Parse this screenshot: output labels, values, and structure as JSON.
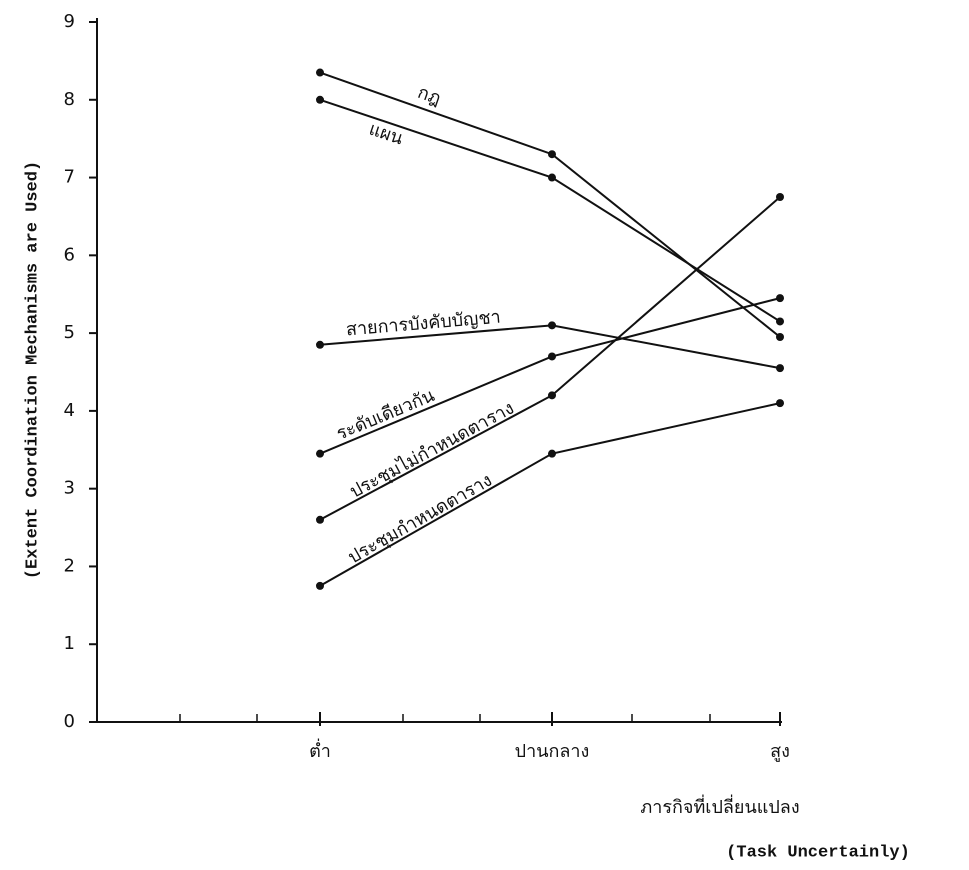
{
  "chart_data": {
    "type": "line",
    "y_label": "(Extent Coordination Mechanisms are Used)",
    "x_label": "ภารกิจที่เปลี่ยนแปลง",
    "x_label_en": "(Task Uncertainly)",
    "categories": [
      "ต่ำ",
      "ปานกลาง",
      "สูง"
    ],
    "series": [
      {
        "name": "กฎ",
        "color": "#111111",
        "values": [
          8.35,
          7.3,
          4.95
        ]
      },
      {
        "name": "แผน",
        "color": "#111111",
        "values": [
          8.0,
          7.0,
          5.15
        ]
      },
      {
        "name": "สายการบังคับบัญชา",
        "color": "#111111",
        "values": [
          4.85,
          5.1,
          4.55
        ]
      },
      {
        "name": "ระดับเดียวกัน",
        "color": "#111111",
        "values": [
          3.45,
          4.7,
          5.45
        ]
      },
      {
        "name": "ประชุมไม่กำหนดตาราง",
        "color": "#111111",
        "values": [
          2.6,
          4.2,
          6.75
        ]
      },
      {
        "name": "ประชุมกำหนดตาราง",
        "color": "#111111",
        "values": [
          1.75,
          3.45,
          4.1
        ]
      }
    ],
    "ylim": [
      0,
      9
    ],
    "yticks": [
      0,
      1,
      2,
      3,
      4,
      5,
      6,
      7,
      8,
      9
    ],
    "grid": false
  }
}
